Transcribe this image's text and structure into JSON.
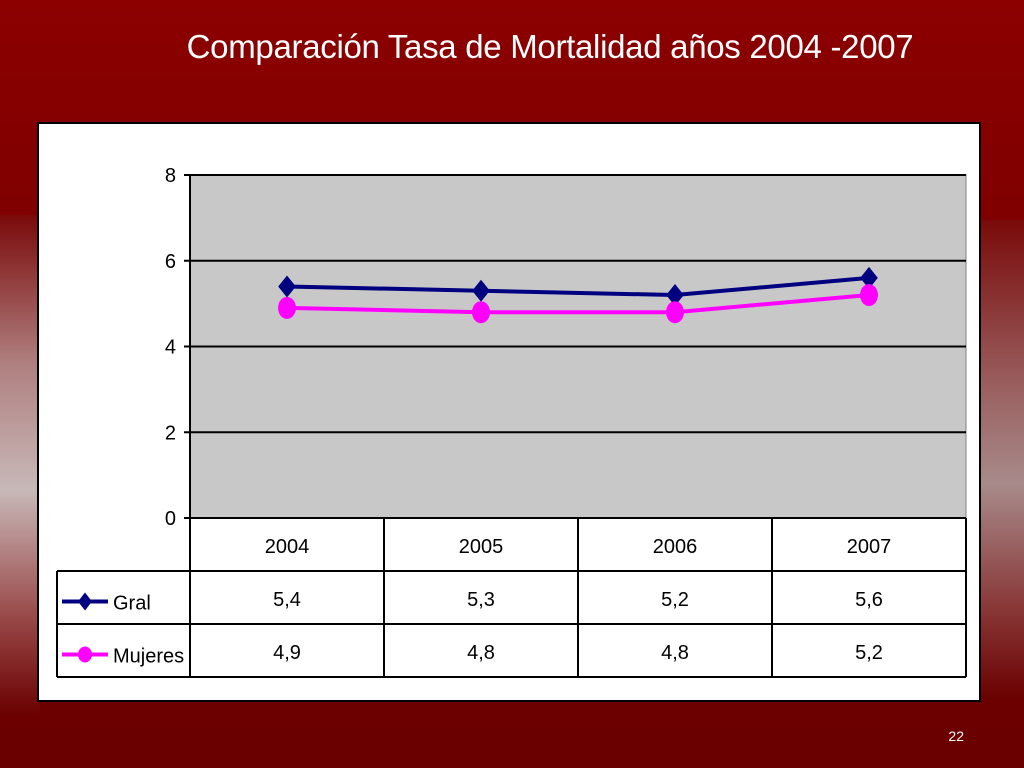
{
  "slide": {
    "title": "Comparación Tasa de Mortalidad años 2004 -2007",
    "page_number": "22"
  },
  "colors": {
    "background": "#7a0000",
    "plot_area": "#c8c8c8",
    "gral": "#000080",
    "mujeres": "#ff00ff"
  },
  "chart_data": {
    "type": "line",
    "title": "",
    "xlabel": "",
    "ylabel": "",
    "categories": [
      "2004",
      "2005",
      "2006",
      "2007"
    ],
    "y_ticks": [
      "0",
      "2",
      "4",
      "6",
      "8"
    ],
    "ylim": [
      0,
      8
    ],
    "grid": true,
    "legend": "data-table",
    "series": [
      {
        "name": "Gral",
        "values": [
          5.4,
          5.3,
          5.2,
          5.6
        ],
        "labels": [
          "5,4",
          "5,3",
          "5,2",
          "5,6"
        ],
        "marker": "diamond"
      },
      {
        "name": "Mujeres",
        "values": [
          4.9,
          4.8,
          4.8,
          5.2
        ],
        "labels": [
          "4,9",
          "4,8",
          "4,8",
          "5,2"
        ],
        "marker": "circle"
      }
    ]
  }
}
